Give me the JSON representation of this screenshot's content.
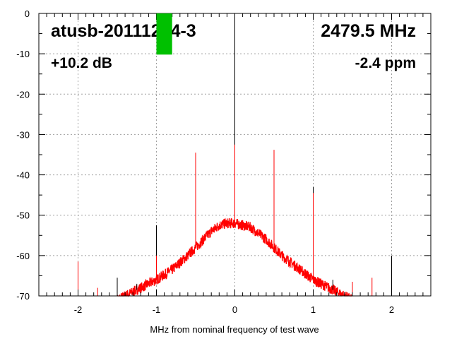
{
  "chart_data": {
    "type": "line",
    "title": "",
    "xlabel": "MHz from nominal frequency of test wave",
    "ylabel": "",
    "xlim": [
      -2.5,
      2.5
    ],
    "ylim": [
      -70,
      0
    ],
    "xticks": [
      -2,
      -1,
      0,
      1,
      2
    ],
    "xtick_labels": [
      "-2",
      "-1",
      "0",
      "1",
      "2"
    ],
    "yticks": [
      0,
      -10,
      -20,
      -30,
      -40,
      -50,
      -60,
      -70
    ],
    "ytick_labels": [
      "0",
      "-10",
      "-20",
      "-30",
      "-40",
      "-50",
      "-60",
      "-70"
    ],
    "grid": true,
    "annotations": {
      "device": "atusb-20111214-3",
      "frequency": "2479.5 MHz",
      "level": "+10.2 dB",
      "offset": "-2.4 ppm"
    },
    "level_meter_db": 10.2,
    "series": [
      {
        "color": "#ff0000",
        "noise_floor": {
          "x": [
            -1.5,
            -1.4,
            -1.2,
            -1.0,
            -0.8,
            -0.6,
            -0.5,
            -0.4,
            -0.3,
            -0.2,
            -0.1,
            0,
            0.1,
            0.2,
            0.3,
            0.4,
            0.5,
            0.6,
            0.8,
            1.0,
            1.2,
            1.4,
            1.5
          ],
          "y": [
            -71,
            -70,
            -68,
            -66,
            -63.5,
            -60,
            -58,
            -56,
            -54,
            -52.5,
            -52,
            -52,
            -52.5,
            -53,
            -54.5,
            -56,
            -58,
            -60,
            -63,
            -66,
            -68,
            -70,
            -71
          ]
        },
        "spikes": {
          "x": [
            -2,
            -1.75,
            -1,
            -0.5,
            0,
            0.5,
            1,
            1.5,
            1.75
          ],
          "y": [
            -61.5,
            -68,
            -60,
            -34.5,
            -32.5,
            -33.8,
            -44.5,
            -66.5,
            -65.5
          ]
        }
      },
      {
        "color": "#000000",
        "spikes": {
          "x": [
            -1.5,
            -1.25,
            -1,
            0,
            0.5,
            1,
            1.25,
            2
          ],
          "y": [
            -65.5,
            -67,
            -52.5,
            0,
            -38,
            -43,
            -66,
            -60
          ]
        }
      }
    ]
  },
  "colors": {
    "meter": "#00c000",
    "grid": "#a0a0a0"
  }
}
